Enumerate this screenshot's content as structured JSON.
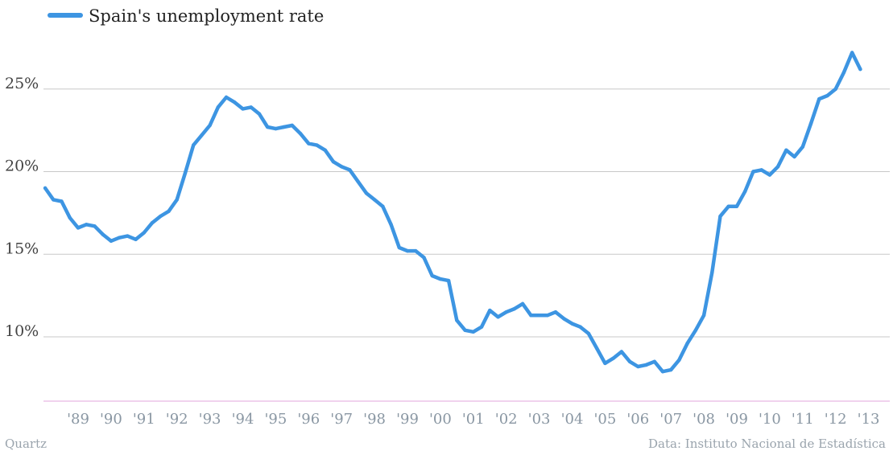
{
  "chart_data": {
    "type": "line",
    "title": "",
    "xlabel": "",
    "ylabel": "",
    "legend": {
      "position": "top-left",
      "entries": [
        "Spain's unemployment rate"
      ]
    },
    "series": [
      {
        "name": "Spain's unemployment rate",
        "color": "#3d95e2",
        "points": [
          [
            1988.0,
            19.0
          ],
          [
            1988.25,
            18.3
          ],
          [
            1988.5,
            18.2
          ],
          [
            1988.75,
            17.2
          ],
          [
            1989.0,
            16.6
          ],
          [
            1989.25,
            16.8
          ],
          [
            1989.5,
            16.7
          ],
          [
            1989.75,
            16.2
          ],
          [
            1990.0,
            15.8
          ],
          [
            1990.25,
            16.0
          ],
          [
            1990.5,
            16.1
          ],
          [
            1990.75,
            15.9
          ],
          [
            1991.0,
            16.3
          ],
          [
            1991.25,
            16.9
          ],
          [
            1991.5,
            17.3
          ],
          [
            1991.75,
            17.6
          ],
          [
            1992.0,
            18.3
          ],
          [
            1992.25,
            19.9
          ],
          [
            1992.5,
            21.6
          ],
          [
            1992.75,
            22.2
          ],
          [
            1993.0,
            22.8
          ],
          [
            1993.25,
            23.9
          ],
          [
            1993.5,
            24.5
          ],
          [
            1993.75,
            24.2
          ],
          [
            1994.0,
            23.8
          ],
          [
            1994.25,
            23.9
          ],
          [
            1994.5,
            23.5
          ],
          [
            1994.75,
            22.7
          ],
          [
            1995.0,
            22.6
          ],
          [
            1995.25,
            22.7
          ],
          [
            1995.5,
            22.8
          ],
          [
            1995.75,
            22.3
          ],
          [
            1996.0,
            21.7
          ],
          [
            1996.25,
            21.6
          ],
          [
            1996.5,
            21.3
          ],
          [
            1996.75,
            20.6
          ],
          [
            1997.0,
            20.3
          ],
          [
            1997.25,
            20.1
          ],
          [
            1997.5,
            19.4
          ],
          [
            1997.75,
            18.7
          ],
          [
            1998.0,
            18.3
          ],
          [
            1998.25,
            17.9
          ],
          [
            1998.5,
            16.8
          ],
          [
            1998.75,
            15.4
          ],
          [
            1999.0,
            15.2
          ],
          [
            1999.25,
            15.2
          ],
          [
            1999.5,
            14.8
          ],
          [
            1999.75,
            13.7
          ],
          [
            2000.0,
            13.5
          ],
          [
            2000.25,
            13.4
          ],
          [
            2000.5,
            11.0
          ],
          [
            2000.75,
            10.4
          ],
          [
            2001.0,
            10.3
          ],
          [
            2001.25,
            10.6
          ],
          [
            2001.5,
            11.6
          ],
          [
            2001.75,
            11.2
          ],
          [
            2002.0,
            11.5
          ],
          [
            2002.25,
            11.7
          ],
          [
            2002.5,
            12.0
          ],
          [
            2002.75,
            11.3
          ],
          [
            2003.0,
            11.3
          ],
          [
            2003.25,
            11.3
          ],
          [
            2003.5,
            11.5
          ],
          [
            2003.75,
            11.1
          ],
          [
            2004.0,
            10.8
          ],
          [
            2004.25,
            10.6
          ],
          [
            2004.5,
            10.2
          ],
          [
            2004.75,
            9.3
          ],
          [
            2005.0,
            8.4
          ],
          [
            2005.25,
            8.7
          ],
          [
            2005.5,
            9.1
          ],
          [
            2005.75,
            8.5
          ],
          [
            2006.0,
            8.2
          ],
          [
            2006.25,
            8.3
          ],
          [
            2006.5,
            8.5
          ],
          [
            2006.75,
            7.9
          ],
          [
            2007.0,
            8.0
          ],
          [
            2007.25,
            8.6
          ],
          [
            2007.5,
            9.6
          ],
          [
            2007.75,
            10.4
          ],
          [
            2008.0,
            11.3
          ],
          [
            2008.25,
            13.9
          ],
          [
            2008.5,
            17.3
          ],
          [
            2008.75,
            17.9
          ],
          [
            2009.0,
            17.9
          ],
          [
            2009.25,
            18.8
          ],
          [
            2009.5,
            20.0
          ],
          [
            2009.75,
            20.1
          ],
          [
            2010.0,
            19.8
          ],
          [
            2010.25,
            20.3
          ],
          [
            2010.5,
            21.3
          ],
          [
            2010.75,
            20.9
          ],
          [
            2011.0,
            21.5
          ],
          [
            2011.25,
            22.9
          ],
          [
            2011.5,
            24.4
          ],
          [
            2011.75,
            24.6
          ],
          [
            2012.0,
            25.0
          ],
          [
            2012.25,
            26.0
          ],
          [
            2012.5,
            27.2
          ],
          [
            2012.75,
            26.2
          ]
        ]
      }
    ],
    "x_ticks": [
      {
        "label": "'89",
        "x": 1989
      },
      {
        "label": "'90",
        "x": 1990
      },
      {
        "label": "'91",
        "x": 1991
      },
      {
        "label": "'92",
        "x": 1992
      },
      {
        "label": "'93",
        "x": 1993
      },
      {
        "label": "'94",
        "x": 1994
      },
      {
        "label": "'95",
        "x": 1995
      },
      {
        "label": "'96",
        "x": 1996
      },
      {
        "label": "'97",
        "x": 1997
      },
      {
        "label": "'98",
        "x": 1998
      },
      {
        "label": "'99",
        "x": 1999
      },
      {
        "label": "'00",
        "x": 2000
      },
      {
        "label": "'01",
        "x": 2001
      },
      {
        "label": "'02",
        "x": 2002
      },
      {
        "label": "'03",
        "x": 2003
      },
      {
        "label": "'04",
        "x": 2004
      },
      {
        "label": "'05",
        "x": 2005
      },
      {
        "label": "'06",
        "x": 2006
      },
      {
        "label": "'07",
        "x": 2007
      },
      {
        "label": "'08",
        "x": 2008
      },
      {
        "label": "'09",
        "x": 2009
      },
      {
        "label": "'10",
        "x": 2010
      },
      {
        "label": "'11",
        "x": 2011
      },
      {
        "label": "'12",
        "x": 2012
      },
      {
        "label": "'13",
        "x": 2013
      }
    ],
    "y_ticks": [
      {
        "label": "10%",
        "value": 10
      },
      {
        "label": "15%",
        "value": 15
      },
      {
        "label": "20%",
        "value": 20
      },
      {
        "label": "25%",
        "value": 25
      }
    ],
    "ylim": [
      6,
      27.5
    ],
    "grid": true
  },
  "footer": {
    "source_left": "Quartz",
    "source_right": "Data: Instituto Nacional de Estadística"
  }
}
